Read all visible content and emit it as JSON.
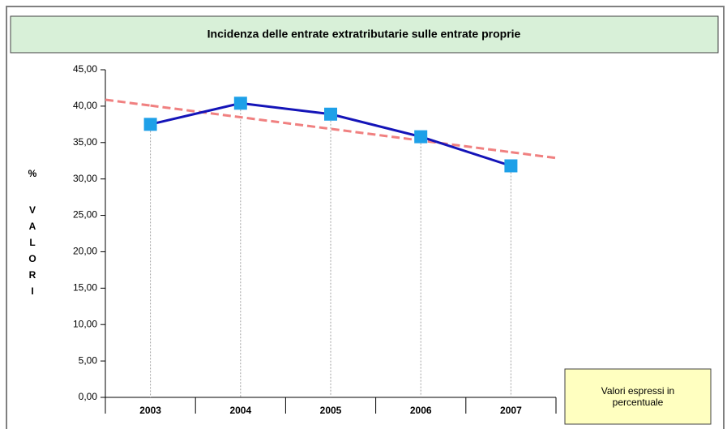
{
  "chart_data": {
    "type": "line",
    "title": "Incidenza delle entrate extratributarie sulle entrate proprie",
    "y_label_symbol": "%",
    "y_label": "VALORI",
    "note": "Valori espressi in percentuale",
    "categories": [
      "2003",
      "2004",
      "2005",
      "2006",
      "2007"
    ],
    "series": [
      {
        "color": "#1414b8",
        "marker_color": "#1ea0e8",
        "values": [
          37.5,
          40.4,
          38.9,
          35.8,
          31.8
        ]
      }
    ],
    "trendline": {
      "color": "#f08080",
      "values": [
        40.08,
        38.48,
        36.88,
        35.28,
        33.68
      ]
    },
    "ylim": [
      0,
      45
    ],
    "yticks": [
      {
        "value": 0,
        "label": "0,00"
      },
      {
        "value": 5,
        "label": "5,00"
      },
      {
        "value": 10,
        "label": "10,00"
      },
      {
        "value": 15,
        "label": "15,00"
      },
      {
        "value": 20,
        "label": "20,00"
      },
      {
        "value": 25,
        "label": "25,00"
      },
      {
        "value": 30,
        "label": "30,00"
      },
      {
        "value": 35,
        "label": "35,00"
      },
      {
        "value": 40,
        "label": "40,00"
      },
      {
        "value": 45,
        "label": "45,00"
      }
    ]
  }
}
